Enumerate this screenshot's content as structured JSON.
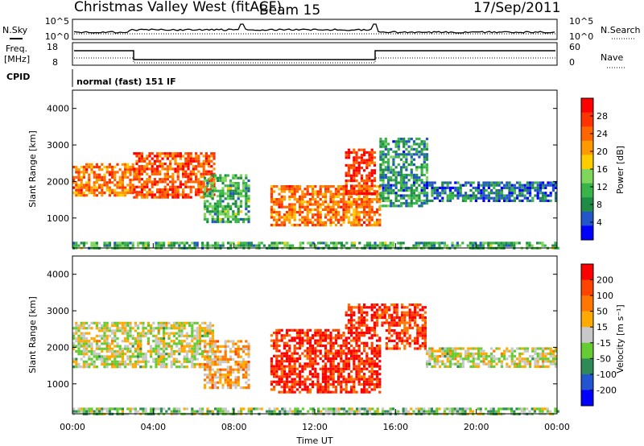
{
  "header": {
    "station": "Christmas Valley West (fitACF)",
    "beam": "Beam 15",
    "date": "17/Sep/2011"
  },
  "housekeeping": {
    "nsky_label": "N.Sky",
    "nsearch_label": "N.Search",
    "freq_label_line1": "Freq.",
    "freq_label_line2": "[MHz]",
    "nave_label": "Nave",
    "cpid_label": "CPID",
    "cpid_value": "normal (fast) 151 IF",
    "noise_ticks_left": [
      "10^5",
      "10^0"
    ],
    "noise_ticks_right": [
      "10^5",
      "10^0"
    ],
    "freq_ticks_left": [
      "18",
      "8"
    ],
    "nave_ticks_right": [
      "60",
      "0"
    ]
  },
  "colorbar_power": {
    "title": "Power [dB]",
    "ticks": [
      "28",
      "24",
      "20",
      "16",
      "12",
      "8",
      "4"
    ],
    "colors": [
      "#0000ff",
      "#2356c8",
      "#1f8c46",
      "#39b44a",
      "#7fd65a",
      "#ffcc00",
      "#ff9900",
      "#ff6600",
      "#ff3300",
      "#ff0000"
    ]
  },
  "colorbar_velocity": {
    "title": "Velocity [m s⁻¹]",
    "ticks": [
      "200",
      "100",
      "50",
      "15",
      "-15",
      "-50",
      "-100",
      "-200"
    ],
    "colors": [
      "#0000ff",
      "#2355d0",
      "#2e8b57",
      "#66cc33",
      "#c8c8c8",
      "#ffaa00",
      "#ff7700",
      "#ff4400",
      "#ff0000"
    ]
  },
  "x_axis": {
    "label": "Time UT",
    "ticks": [
      "00:00",
      "04:00",
      "08:00",
      "12:00",
      "16:00",
      "20:00",
      "00:00"
    ]
  },
  "chart_data": [
    {
      "type": "heatmap",
      "name": "power",
      "ylabel": "Slant Range [km]",
      "xlabel": "Time UT",
      "xlim": [
        0,
        24
      ],
      "ylim": [
        180,
        4500
      ],
      "yticks": [
        1000,
        2000,
        3000,
        4000
      ],
      "clim": [
        0,
        30
      ],
      "regions": [
        {
          "x": [
            0,
            3
          ],
          "y": [
            1600,
            2500
          ],
          "value": 22
        },
        {
          "x": [
            3,
            7
          ],
          "y": [
            1600,
            2800
          ],
          "value": 24
        },
        {
          "x": [
            6.5,
            8.7
          ],
          "y": [
            900,
            2200
          ],
          "value": 10
        },
        {
          "x": [
            9.8,
            15.2
          ],
          "y": [
            800,
            1900
          ],
          "value": 22
        },
        {
          "x": [
            13.5,
            15
          ],
          "y": [
            1700,
            2900
          ],
          "value": 26
        },
        {
          "x": [
            15.2,
            17.5
          ],
          "y": [
            1300,
            3200
          ],
          "value": 8
        },
        {
          "x": [
            17.5,
            24
          ],
          "y": [
            1500,
            2000
          ],
          "value": 6
        },
        {
          "x": [
            0,
            24
          ],
          "y": [
            180,
            350
          ],
          "value": 10
        }
      ]
    },
    {
      "type": "heatmap",
      "name": "velocity",
      "ylabel": "Slant Range [km]",
      "xlabel": "Time UT",
      "xlim": [
        0,
        24
      ],
      "ylim": [
        180,
        4500
      ],
      "yticks": [
        1000,
        2000,
        3000,
        4000
      ],
      "clim": [
        -250,
        250
      ],
      "regions": [
        {
          "x": [
            0,
            7
          ],
          "y": [
            1500,
            2700
          ],
          "value": 0
        },
        {
          "x": [
            6.5,
            8.7
          ],
          "y": [
            900,
            2200
          ],
          "value": 60
        },
        {
          "x": [
            9.8,
            15.2
          ],
          "y": [
            800,
            2500
          ],
          "value": 200
        },
        {
          "x": [
            13.5,
            15.5
          ],
          "y": [
            2500,
            3200
          ],
          "value": 200
        },
        {
          "x": [
            15.5,
            17.5
          ],
          "y": [
            2000,
            3200
          ],
          "value": 180
        },
        {
          "x": [
            17.5,
            24
          ],
          "y": [
            1500,
            2000
          ],
          "value": 0
        },
        {
          "x": [
            0,
            24
          ],
          "y": [
            180,
            350
          ],
          "value": -40
        }
      ]
    }
  ]
}
